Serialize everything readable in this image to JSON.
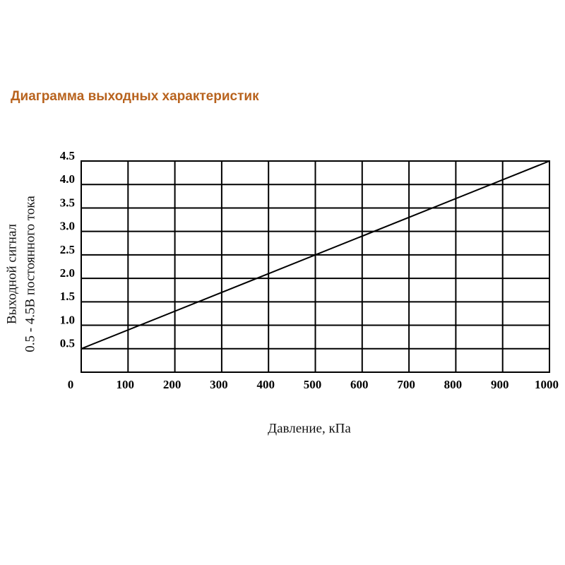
{
  "chart_data": {
    "type": "line",
    "title": "Диаграмма выходных характеристик",
    "xlabel": "Давление, кПа",
    "ylabel": [
      "Выходной сигнал",
      "0.5 - 4.5В постоянного тока"
    ],
    "x": [
      0,
      1000
    ],
    "values": [
      0.5,
      4.5
    ],
    "color": "#000000",
    "xlim": [
      0,
      1000
    ],
    "xticks": [
      0,
      100,
      200,
      300,
      400,
      500,
      600,
      700,
      800,
      900,
      1000
    ],
    "ylim": [
      0,
      4.5
    ],
    "yticks": [
      0.5,
      {
        "value": 1,
        "label": "1.0"
      },
      1.5,
      {
        "value": 2,
        "label": "2.0"
      },
      2.5,
      {
        "value": 3,
        "label": "3.0"
      },
      3.5,
      {
        "value": 4,
        "label": "4.0"
      },
      4.5
    ],
    "grid": true
  }
}
